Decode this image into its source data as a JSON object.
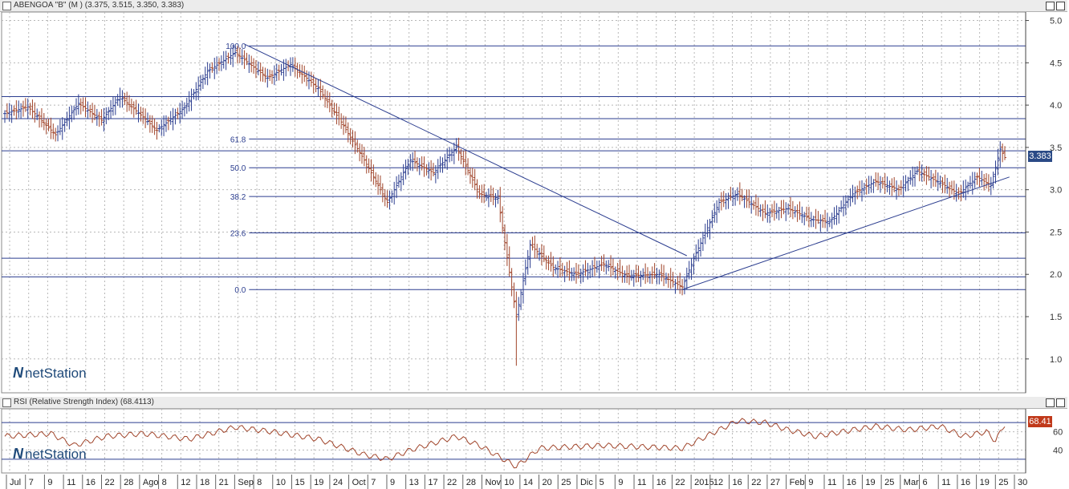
{
  "main_title": "ABENGOA \"B\" (M ) (3.375, 3.515, 3.350, 3.383)",
  "rsi_title": "RSI (Relative Strength Index) (68.4113)",
  "logo": "netStation",
  "last_price_label": "3.383",
  "rsi_value_label": "68.41",
  "colors": {
    "up": "#2b3d8f",
    "down": "#a0442a",
    "line": "#2b3d8f",
    "rsi": "#a0442a",
    "grid": "#b8b8b8"
  },
  "chart_data": [
    {
      "type": "bar",
      "subtype": "ohlc",
      "y_ticks": [
        "5.0",
        "4.5",
        "4.0",
        "3.5",
        "3.0",
        "2.5",
        "2.0",
        "1.5",
        "1.0"
      ],
      "ylim": [
        0.6,
        5.1
      ],
      "fib_levels": [
        {
          "label": "100.0",
          "value": 4.7
        },
        {
          "label": "61.8",
          "value": 3.6
        },
        {
          "label": "50.0",
          "value": 3.26
        },
        {
          "label": "38.2",
          "value": 2.92
        },
        {
          "label": "23.6",
          "value": 2.49
        },
        {
          "label": "0.0",
          "value": 1.82
        }
      ],
      "hlines": [
        4.1,
        3.84,
        3.46,
        2.19,
        1.97
      ],
      "date_labels": [
        "Jul",
        "7",
        "9",
        "11",
        "16",
        "22",
        "28",
        "Ago",
        "8",
        "12",
        "18",
        "21",
        "Sep",
        "8",
        "10",
        "15",
        "19",
        "24",
        "Oct",
        "7",
        "9",
        "13",
        "17",
        "22",
        "28",
        "Nov",
        "10",
        "14",
        "20",
        "25",
        "Dic",
        "5",
        "9",
        "11",
        "16",
        "22",
        "2015",
        "12",
        "16",
        "22",
        "27",
        "Feb",
        "9",
        "11",
        "16",
        "19",
        "25",
        "Mar",
        "6",
        "11",
        "16",
        "19",
        "25",
        "30"
      ],
      "anchors": [
        [
          0,
          3.9
        ],
        [
          10,
          3.98
        ],
        [
          22,
          3.65
        ],
        [
          32,
          4.02
        ],
        [
          42,
          3.82
        ],
        [
          50,
          4.1
        ],
        [
          60,
          3.86
        ],
        [
          66,
          3.7
        ],
        [
          78,
          3.97
        ],
        [
          88,
          4.4
        ],
        [
          100,
          4.62
        ],
        [
          114,
          4.32
        ],
        [
          124,
          4.48
        ],
        [
          136,
          4.2
        ],
        [
          146,
          3.8
        ],
        [
          156,
          3.35
        ],
        [
          166,
          2.85
        ],
        [
          176,
          3.35
        ],
        [
          186,
          3.2
        ],
        [
          196,
          3.5
        ],
        [
          206,
          2.95
        ],
        [
          214,
          2.9
        ],
        [
          222,
          1.5
        ],
        [
          228,
          2.35
        ],
        [
          238,
          2.08
        ],
        [
          248,
          2.0
        ],
        [
          260,
          2.12
        ],
        [
          270,
          1.98
        ],
        [
          284,
          2.0
        ],
        [
          294,
          1.85
        ],
        [
          300,
          2.25
        ],
        [
          310,
          2.85
        ],
        [
          318,
          2.95
        ],
        [
          330,
          2.72
        ],
        [
          340,
          2.78
        ],
        [
          350,
          2.65
        ],
        [
          358,
          2.62
        ],
        [
          368,
          2.95
        ],
        [
          378,
          3.1
        ],
        [
          388,
          3.0
        ],
        [
          396,
          3.22
        ],
        [
          406,
          3.08
        ],
        [
          414,
          2.95
        ],
        [
          422,
          3.15
        ],
        [
          428,
          3.05
        ],
        [
          432,
          3.48
        ],
        [
          434,
          3.38
        ]
      ],
      "bars": 435,
      "last": {
        "open": 3.375,
        "high": 3.515,
        "low": 3.35,
        "close": 3.383
      }
    },
    {
      "type": "line",
      "name": "RSI (Relative Strength Index)",
      "y_ticks": [
        "60",
        "40"
      ],
      "ylim": [
        15,
        85
      ],
      "levels": [
        70,
        30
      ],
      "anchors": [
        [
          0,
          55
        ],
        [
          20,
          58
        ],
        [
          30,
          45
        ],
        [
          44,
          55
        ],
        [
          60,
          58
        ],
        [
          80,
          52
        ],
        [
          100,
          65
        ],
        [
          116,
          60
        ],
        [
          136,
          52
        ],
        [
          156,
          35
        ],
        [
          166,
          30
        ],
        [
          176,
          40
        ],
        [
          196,
          55
        ],
        [
          206,
          45
        ],
        [
          222,
          22
        ],
        [
          232,
          42
        ],
        [
          260,
          45
        ],
        [
          294,
          42
        ],
        [
          310,
          62
        ],
        [
          318,
          72
        ],
        [
          330,
          70
        ],
        [
          340,
          62
        ],
        [
          352,
          55
        ],
        [
          368,
          62
        ],
        [
          378,
          66
        ],
        [
          392,
          62
        ],
        [
          406,
          66
        ],
        [
          416,
          55
        ],
        [
          426,
          60
        ],
        [
          430,
          50
        ],
        [
          434,
          68.41
        ]
      ]
    }
  ]
}
